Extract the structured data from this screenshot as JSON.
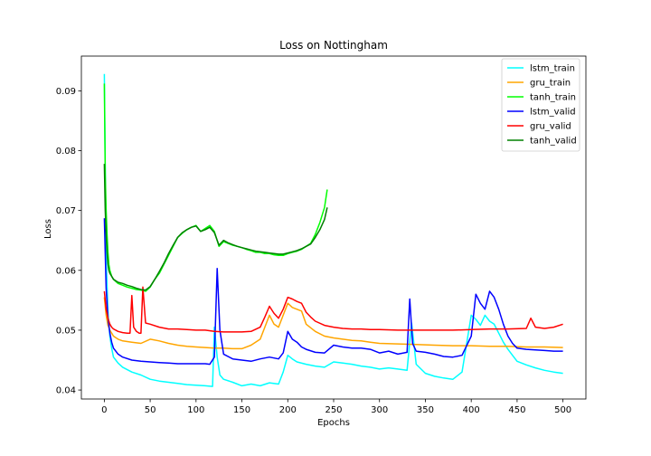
{
  "chart_data": {
    "type": "line",
    "title": "Loss on Nottingham",
    "xlabel": "Epochs",
    "ylabel": "Loss",
    "xlim": [
      -25,
      525
    ],
    "ylim": [
      0.0385,
      0.0958
    ],
    "xticks": [
      0,
      50,
      100,
      150,
      200,
      250,
      300,
      350,
      400,
      450,
      500
    ],
    "yticks": [
      0.04,
      0.05,
      0.06,
      0.07,
      0.08,
      0.09
    ],
    "ytick_labels": [
      "0.04",
      "0.05",
      "0.06",
      "0.07",
      "0.08",
      "0.09"
    ],
    "grid": false,
    "legend_position": "upper right",
    "series": [
      {
        "name": "lstm_train",
        "color": "#00ffff",
        "x": [
          0,
          2,
          4,
          6,
          8,
          10,
          15,
          20,
          30,
          40,
          50,
          60,
          70,
          80,
          90,
          100,
          110,
          118,
          120,
          123,
          126,
          130,
          140,
          150,
          160,
          170,
          180,
          190,
          195,
          200,
          205,
          210,
          220,
          230,
          240,
          250,
          260,
          270,
          280,
          290,
          300,
          310,
          320,
          330,
          335,
          340,
          350,
          360,
          370,
          380,
          390,
          400,
          405,
          410,
          415,
          420,
          425,
          430,
          435,
          440,
          445,
          450,
          460,
          470,
          480,
          490,
          500
        ],
        "y": [
          0.0928,
          0.062,
          0.053,
          0.049,
          0.047,
          0.0455,
          0.0445,
          0.0438,
          0.043,
          0.0425,
          0.0418,
          0.0415,
          0.0413,
          0.0411,
          0.0409,
          0.0408,
          0.0407,
          0.0406,
          0.0505,
          0.0455,
          0.0425,
          0.0418,
          0.0413,
          0.0407,
          0.041,
          0.0407,
          0.0412,
          0.041,
          0.043,
          0.0458,
          0.0452,
          0.0447,
          0.0443,
          0.044,
          0.0438,
          0.0447,
          0.0445,
          0.0443,
          0.044,
          0.0438,
          0.0435,
          0.0437,
          0.0435,
          0.0433,
          0.0512,
          0.0443,
          0.0428,
          0.0423,
          0.042,
          0.0418,
          0.043,
          0.0525,
          0.0518,
          0.0508,
          0.0525,
          0.0515,
          0.051,
          0.0495,
          0.048,
          0.0468,
          0.0458,
          0.0448,
          0.0442,
          0.0437,
          0.0433,
          0.043,
          0.0428
        ]
      },
      {
        "name": "gru_train",
        "color": "#ffa500",
        "x": [
          0,
          2,
          4,
          6,
          8,
          10,
          15,
          20,
          30,
          40,
          50,
          60,
          70,
          80,
          90,
          100,
          110,
          120,
          130,
          140,
          150,
          160,
          170,
          175,
          180,
          185,
          190,
          195,
          200,
          205,
          210,
          215,
          220,
          230,
          240,
          250,
          260,
          270,
          280,
          290,
          300,
          320,
          340,
          360,
          380,
          400,
          420,
          440,
          460,
          480,
          500
        ],
        "y": [
          0.0555,
          0.0525,
          0.0508,
          0.05,
          0.0495,
          0.049,
          0.0485,
          0.0482,
          0.048,
          0.0478,
          0.0485,
          0.0482,
          0.0478,
          0.0475,
          0.0473,
          0.0472,
          0.0471,
          0.047,
          0.047,
          0.0469,
          0.0469,
          0.0475,
          0.0485,
          0.0505,
          0.0525,
          0.051,
          0.0505,
          0.0525,
          0.0545,
          0.0538,
          0.0535,
          0.0532,
          0.051,
          0.0498,
          0.049,
          0.0487,
          0.0485,
          0.0483,
          0.0482,
          0.048,
          0.0478,
          0.0477,
          0.0476,
          0.0475,
          0.0474,
          0.0474,
          0.0473,
          0.0473,
          0.0472,
          0.0472,
          0.0471
        ]
      },
      {
        "name": "tanh_train",
        "color": "#00ff00",
        "x": [
          0,
          1,
          2,
          3,
          4,
          5,
          6,
          8,
          10,
          15,
          20,
          25,
          30,
          35,
          40,
          45,
          50,
          55,
          60,
          65,
          70,
          75,
          80,
          85,
          90,
          95,
          100,
          105,
          110,
          115,
          120,
          125,
          130,
          135,
          140,
          145,
          150,
          155,
          160,
          165,
          170,
          175,
          180,
          185,
          190,
          195,
          200,
          205,
          210,
          215,
          220,
          225,
          230,
          235,
          240,
          243
        ],
        "y": [
          0.0912,
          0.076,
          0.07,
          0.066,
          0.063,
          0.061,
          0.06,
          0.059,
          0.0585,
          0.0578,
          0.0575,
          0.0572,
          0.057,
          0.0568,
          0.0567,
          0.0565,
          0.0572,
          0.0585,
          0.0595,
          0.061,
          0.0625,
          0.064,
          0.0655,
          0.0662,
          0.0668,
          0.0672,
          0.0675,
          0.0665,
          0.067,
          0.0675,
          0.0665,
          0.064,
          0.0648,
          0.0645,
          0.0642,
          0.064,
          0.0638,
          0.0635,
          0.0633,
          0.063,
          0.063,
          0.0628,
          0.0628,
          0.0626,
          0.0625,
          0.0625,
          0.0628,
          0.063,
          0.0632,
          0.0635,
          0.064,
          0.0645,
          0.066,
          0.068,
          0.0705,
          0.0735
        ]
      },
      {
        "name": "lstm_valid",
        "color": "#0000ff",
        "x": [
          0,
          2,
          4,
          6,
          8,
          10,
          15,
          20,
          30,
          40,
          50,
          60,
          70,
          80,
          90,
          100,
          110,
          115,
          120,
          123,
          126,
          130,
          140,
          150,
          160,
          170,
          180,
          190,
          195,
          200,
          205,
          210,
          215,
          220,
          230,
          240,
          250,
          260,
          270,
          280,
          290,
          300,
          310,
          320,
          330,
          333,
          336,
          340,
          350,
          360,
          370,
          380,
          390,
          400,
          405,
          410,
          415,
          420,
          425,
          430,
          435,
          440,
          445,
          450,
          460,
          470,
          480,
          490,
          500
        ],
        "y": [
          0.0687,
          0.057,
          0.052,
          0.0495,
          0.048,
          0.047,
          0.046,
          0.0455,
          0.045,
          0.0448,
          0.0447,
          0.0446,
          0.0445,
          0.0444,
          0.0444,
          0.0444,
          0.0444,
          0.0443,
          0.0455,
          0.0603,
          0.05,
          0.046,
          0.0452,
          0.045,
          0.0448,
          0.0452,
          0.0455,
          0.0452,
          0.0462,
          0.0498,
          0.0485,
          0.048,
          0.0472,
          0.0468,
          0.0463,
          0.0462,
          0.0475,
          0.0472,
          0.047,
          0.047,
          0.0468,
          0.0462,
          0.0465,
          0.046,
          0.0463,
          0.0552,
          0.0478,
          0.0465,
          0.0463,
          0.046,
          0.0456,
          0.0455,
          0.0458,
          0.049,
          0.056,
          0.0545,
          0.0535,
          0.0565,
          0.0555,
          0.0535,
          0.051,
          0.049,
          0.0478,
          0.047,
          0.0468,
          0.0467,
          0.0466,
          0.0465,
          0.0465
        ]
      },
      {
        "name": "gru_valid",
        "color": "#ff0000",
        "x": [
          0,
          2,
          4,
          6,
          8,
          10,
          15,
          20,
          25,
          28,
          30,
          32,
          35,
          38,
          40,
          42,
          45,
          50,
          60,
          70,
          80,
          90,
          100,
          110,
          120,
          130,
          140,
          150,
          160,
          170,
          175,
          180,
          185,
          190,
          195,
          200,
          205,
          210,
          215,
          220,
          225,
          230,
          240,
          250,
          260,
          270,
          280,
          290,
          300,
          320,
          340,
          360,
          380,
          400,
          420,
          440,
          460,
          465,
          470,
          480,
          490,
          500
        ],
        "y": [
          0.0565,
          0.0535,
          0.052,
          0.051,
          0.0505,
          0.0502,
          0.0498,
          0.0496,
          0.0495,
          0.0495,
          0.0558,
          0.0505,
          0.0498,
          0.0495,
          0.0495,
          0.0572,
          0.0512,
          0.051,
          0.0505,
          0.0502,
          0.0502,
          0.0501,
          0.05,
          0.05,
          0.0498,
          0.0497,
          0.0497,
          0.0497,
          0.0498,
          0.0505,
          0.0522,
          0.054,
          0.0528,
          0.052,
          0.0535,
          0.0555,
          0.0552,
          0.0548,
          0.0545,
          0.053,
          0.0522,
          0.0515,
          0.0508,
          0.0505,
          0.0503,
          0.0502,
          0.0502,
          0.0501,
          0.0501,
          0.05,
          0.05,
          0.05,
          0.05,
          0.0501,
          0.0502,
          0.0502,
          0.0503,
          0.052,
          0.0505,
          0.0503,
          0.0505,
          0.051
        ]
      },
      {
        "name": "tanh_valid",
        "color": "#008000",
        "x": [
          0,
          1,
          2,
          3,
          4,
          5,
          6,
          8,
          10,
          15,
          20,
          25,
          30,
          35,
          40,
          45,
          50,
          55,
          60,
          65,
          70,
          75,
          80,
          85,
          90,
          95,
          100,
          105,
          110,
          115,
          120,
          125,
          130,
          135,
          140,
          145,
          150,
          155,
          160,
          165,
          170,
          175,
          180,
          185,
          190,
          195,
          200,
          205,
          210,
          215,
          220,
          225,
          230,
          235,
          240,
          243
        ],
        "y": [
          0.0778,
          0.07,
          0.066,
          0.063,
          0.061,
          0.06,
          0.0595,
          0.059,
          0.0585,
          0.058,
          0.0578,
          0.0575,
          0.0573,
          0.057,
          0.0568,
          0.0567,
          0.0573,
          0.0585,
          0.0598,
          0.0612,
          0.0628,
          0.0642,
          0.0655,
          0.0663,
          0.0668,
          0.0672,
          0.0674,
          0.0665,
          0.0668,
          0.0672,
          0.0663,
          0.0642,
          0.065,
          0.0646,
          0.0643,
          0.064,
          0.0638,
          0.0636,
          0.0634,
          0.0632,
          0.0631,
          0.063,
          0.0629,
          0.0628,
          0.0627,
          0.0627,
          0.0629,
          0.0631,
          0.0633,
          0.0636,
          0.064,
          0.0644,
          0.0655,
          0.0668,
          0.0685,
          0.0705
        ]
      }
    ]
  }
}
